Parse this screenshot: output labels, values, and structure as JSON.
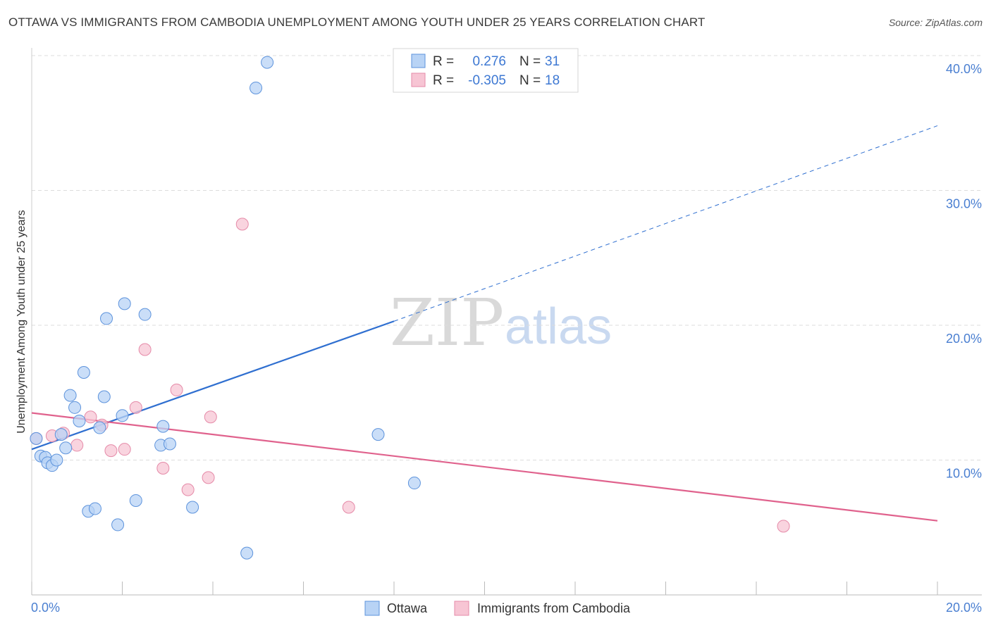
{
  "title": "OTTAWA VS IMMIGRANTS FROM CAMBODIA UNEMPLOYMENT AMONG YOUTH UNDER 25 YEARS CORRELATION CHART",
  "source": "Source: ZipAtlas.com",
  "watermark": {
    "zip": "ZIP",
    "atlas": "atlas"
  },
  "colors": {
    "ottawa_fill": "#b8d3f5",
    "ottawa_stroke": "#5d93dc",
    "ottawa_line": "#2f6fd0",
    "cambodia_fill": "#f7c5d4",
    "cambodia_stroke": "#e58aa8",
    "cambodia_line": "#e0628d",
    "tick_text": "#4a7fd1",
    "grid": "#dddddd"
  },
  "legend": {
    "rows": [
      {
        "r_label": "R =",
        "r_value": "0.276",
        "n_label": "N =",
        "n_value": "31"
      },
      {
        "r_label": "R =",
        "r_value": "-0.305",
        "n_label": "N =",
        "n_value": "18"
      }
    ]
  },
  "chart_data": {
    "type": "scatter",
    "title": "OTTAWA VS IMMIGRANTS FROM CAMBODIA UNEMPLOYMENT AMONG YOUTH UNDER 25 YEARS CORRELATION CHART",
    "xlabel": "",
    "ylabel": "Unemployment Among Youth under 25 years",
    "xlim": [
      0,
      20
    ],
    "ylim": [
      0,
      40
    ],
    "x_tick_labels": [
      "0.0%",
      "20.0%"
    ],
    "y_ticks": [
      10,
      20,
      30,
      40
    ],
    "y_tick_labels": [
      "10.0%",
      "20.0%",
      "30.0%",
      "40.0%"
    ],
    "legend_position": "top-center",
    "series": [
      {
        "name": "Ottawa",
        "r": 0.276,
        "n": 31,
        "points": [
          [
            0.1,
            11.6
          ],
          [
            0.2,
            10.3
          ],
          [
            0.3,
            10.2
          ],
          [
            0.35,
            9.8
          ],
          [
            0.45,
            9.6
          ],
          [
            0.55,
            10.0
          ],
          [
            0.65,
            11.9
          ],
          [
            0.75,
            10.9
          ],
          [
            0.85,
            14.8
          ],
          [
            0.95,
            13.9
          ],
          [
            1.05,
            12.9
          ],
          [
            1.15,
            16.5
          ],
          [
            1.25,
            6.2
          ],
          [
            1.4,
            6.4
          ],
          [
            1.5,
            12.4
          ],
          [
            1.6,
            14.7
          ],
          [
            1.65,
            20.5
          ],
          [
            1.9,
            5.2
          ],
          [
            2.0,
            13.3
          ],
          [
            2.05,
            21.6
          ],
          [
            2.3,
            7.0
          ],
          [
            2.5,
            20.8
          ],
          [
            2.85,
            11.1
          ],
          [
            2.9,
            12.5
          ],
          [
            3.05,
            11.2
          ],
          [
            3.55,
            6.5
          ],
          [
            4.75,
            3.1
          ],
          [
            4.95,
            37.6
          ],
          [
            5.2,
            39.5
          ],
          [
            7.65,
            11.9
          ],
          [
            8.45,
            8.3
          ]
        ],
        "trend": {
          "x0": 0,
          "y0": 10.8,
          "x_solid_end": 8,
          "y_solid_end": 20.3,
          "x1": 20,
          "y1": 34.8,
          "extrapolated": "dashed"
        }
      },
      {
        "name": "Immigrants from Cambodia",
        "r": -0.305,
        "n": 18,
        "points": [
          [
            0.1,
            11.6
          ],
          [
            0.45,
            11.8
          ],
          [
            0.7,
            12.0
          ],
          [
            1.0,
            11.1
          ],
          [
            1.3,
            13.2
          ],
          [
            1.55,
            12.6
          ],
          [
            1.75,
            10.7
          ],
          [
            2.05,
            10.8
          ],
          [
            2.3,
            13.9
          ],
          [
            2.5,
            18.2
          ],
          [
            2.9,
            9.4
          ],
          [
            3.2,
            15.2
          ],
          [
            3.45,
            7.8
          ],
          [
            3.9,
            8.7
          ],
          [
            3.95,
            13.2
          ],
          [
            4.65,
            27.5
          ],
          [
            7.0,
            6.5
          ],
          [
            16.6,
            5.1
          ]
        ],
        "trend": {
          "x0": 0,
          "y0": 13.5,
          "x1": 20,
          "y1": 5.5
        }
      }
    ]
  }
}
